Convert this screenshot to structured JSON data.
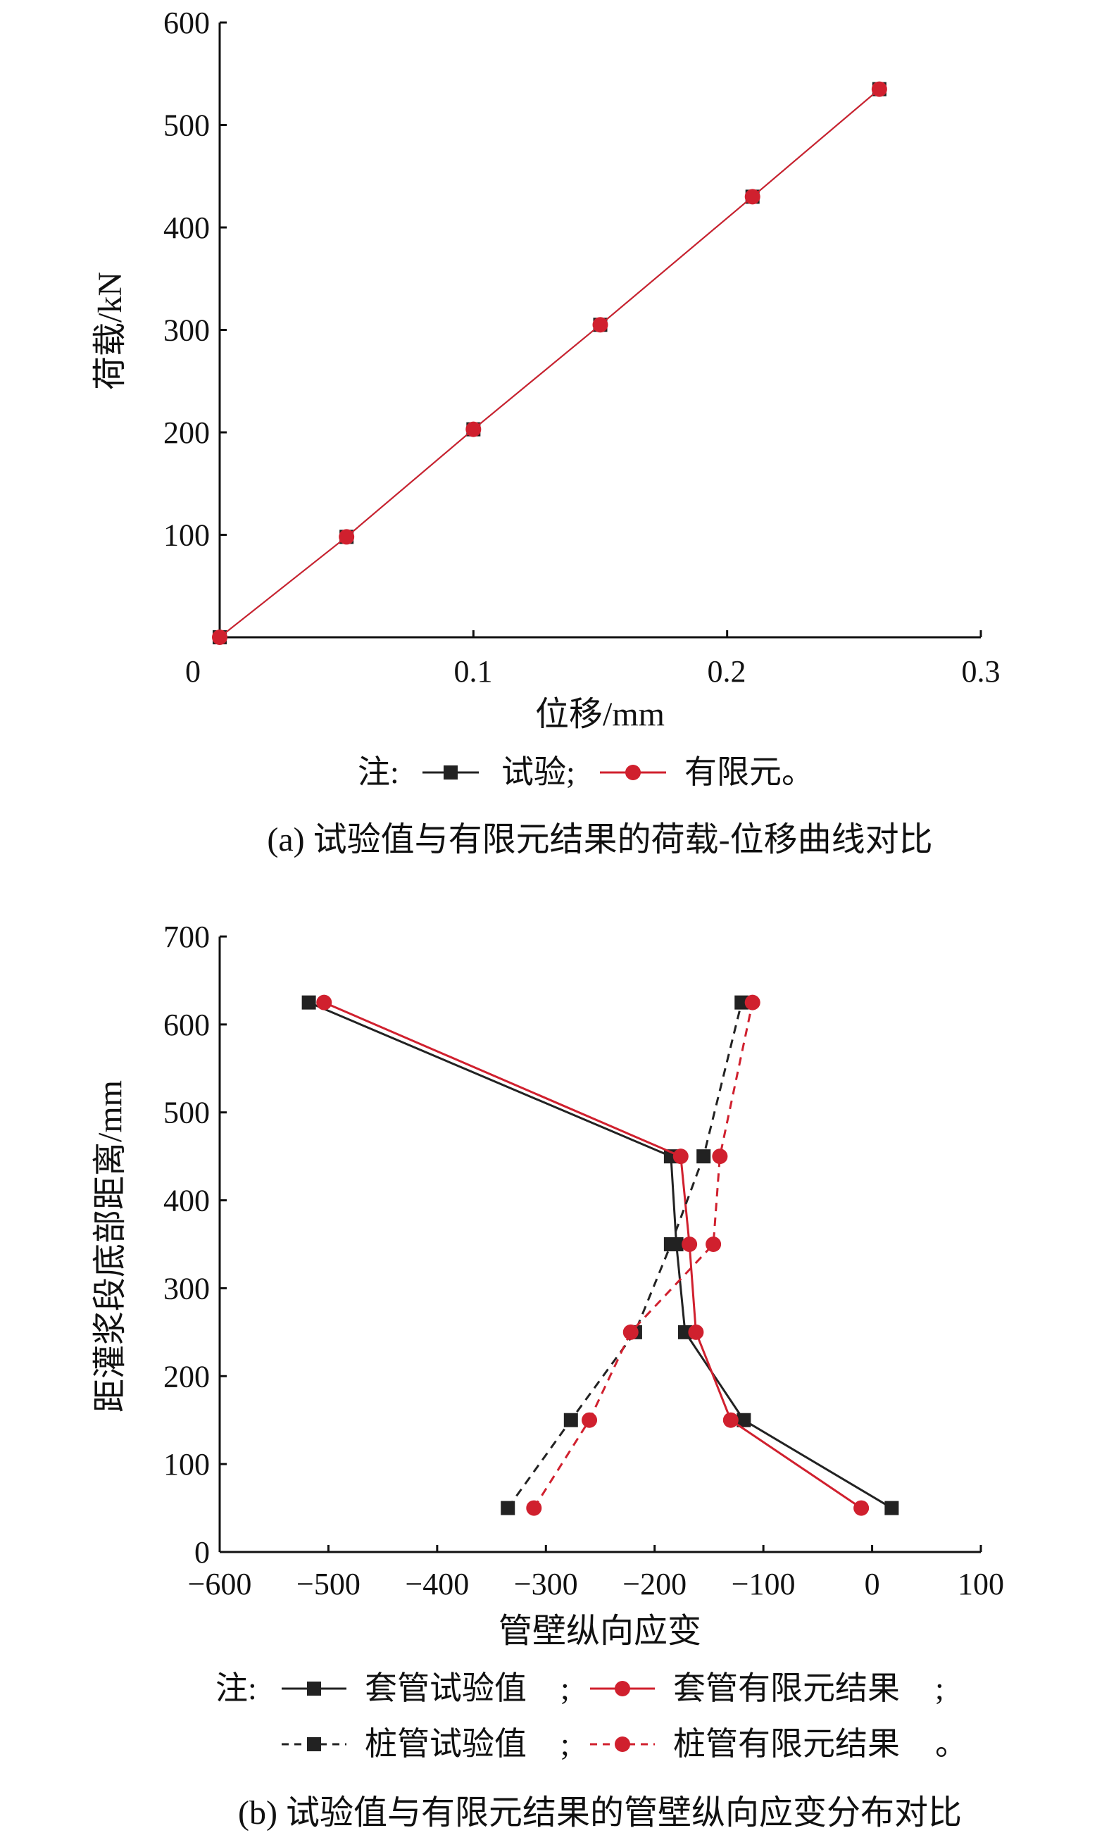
{
  "chart_data": [
    {
      "type": "line",
      "caption": "(a) 试验值与有限元结果的荷载-位移曲线对比",
      "xlabel": "位移/mm",
      "ylabel": "荷载/kN",
      "xlim": [
        0,
        0.3
      ],
      "ylim": [
        0,
        600
      ],
      "xticks": [
        "0",
        "0.1",
        "0.2",
        "0.3"
      ],
      "yticks": [
        "100",
        "200",
        "300",
        "400",
        "500",
        "600"
      ],
      "legend_prefix": "注:",
      "legend_sep": ";",
      "legend_end": "。",
      "series": [
        {
          "name": "试验",
          "color": "#222222",
          "marker": "square",
          "dash": "solid",
          "points": [
            [
              0,
              0
            ],
            [
              0.05,
              98
            ],
            [
              0.1,
              203
            ],
            [
              0.15,
              305
            ],
            [
              0.21,
              430
            ],
            [
              0.26,
              535
            ]
          ]
        },
        {
          "name": "有限元",
          "color": "#d0202e",
          "marker": "circle",
          "dash": "solid",
          "points": [
            [
              0,
              0
            ],
            [
              0.05,
              98
            ],
            [
              0.1,
              203
            ],
            [
              0.15,
              305
            ],
            [
              0.21,
              430
            ],
            [
              0.26,
              535
            ]
          ]
        }
      ]
    },
    {
      "type": "line",
      "caption": "(b) 试验值与有限元结果的管壁纵向应变分布对比",
      "xlabel": "管壁纵向应变",
      "ylabel": "距灌浆段底部距离/mm",
      "xlim": [
        -600,
        100
      ],
      "ylim": [
        0,
        700
      ],
      "xticks": [
        "−600",
        "−500",
        "−400",
        "−300",
        "−200",
        "−100",
        "0",
        "100"
      ],
      "yticks": [
        "0",
        "100",
        "200",
        "300",
        "400",
        "500",
        "600",
        "700"
      ],
      "legend_prefix": "注:",
      "legend_sep": ";",
      "legend_end": "。",
      "series": [
        {
          "name": "套管试验值",
          "color": "#222222",
          "marker": "square",
          "dash": "solid",
          "points": [
            [
              18,
              50
            ],
            [
              -118,
              150
            ],
            [
              -172,
              250
            ],
            [
              -180,
              350
            ],
            [
              -185,
              450
            ],
            [
              -518,
              625
            ]
          ]
        },
        {
          "name": "套管有限元结果",
          "color": "#d0202e",
          "marker": "circle",
          "dash": "solid",
          "points": [
            [
              -10,
              50
            ],
            [
              -130,
              150
            ],
            [
              -162,
              250
            ],
            [
              -168,
              350
            ],
            [
              -176,
              450
            ],
            [
              -504,
              625
            ]
          ]
        },
        {
          "name": "桩管试验值",
          "color": "#222222",
          "marker": "square",
          "dash": "dashed",
          "points": [
            [
              -335,
              50
            ],
            [
              -277,
              150
            ],
            [
              -218,
              250
            ],
            [
              -185,
              350
            ],
            [
              -155,
              450
            ],
            [
              -120,
              625
            ]
          ]
        },
        {
          "name": "桩管有限元结果",
          "color": "#d0202e",
          "marker": "circle",
          "dash": "dashed",
          "points": [
            [
              -311,
              50
            ],
            [
              -260,
              150
            ],
            [
              -222,
              250
            ],
            [
              -146,
              350
            ],
            [
              -140,
              450
            ],
            [
              -110,
              625
            ]
          ]
        }
      ]
    }
  ]
}
